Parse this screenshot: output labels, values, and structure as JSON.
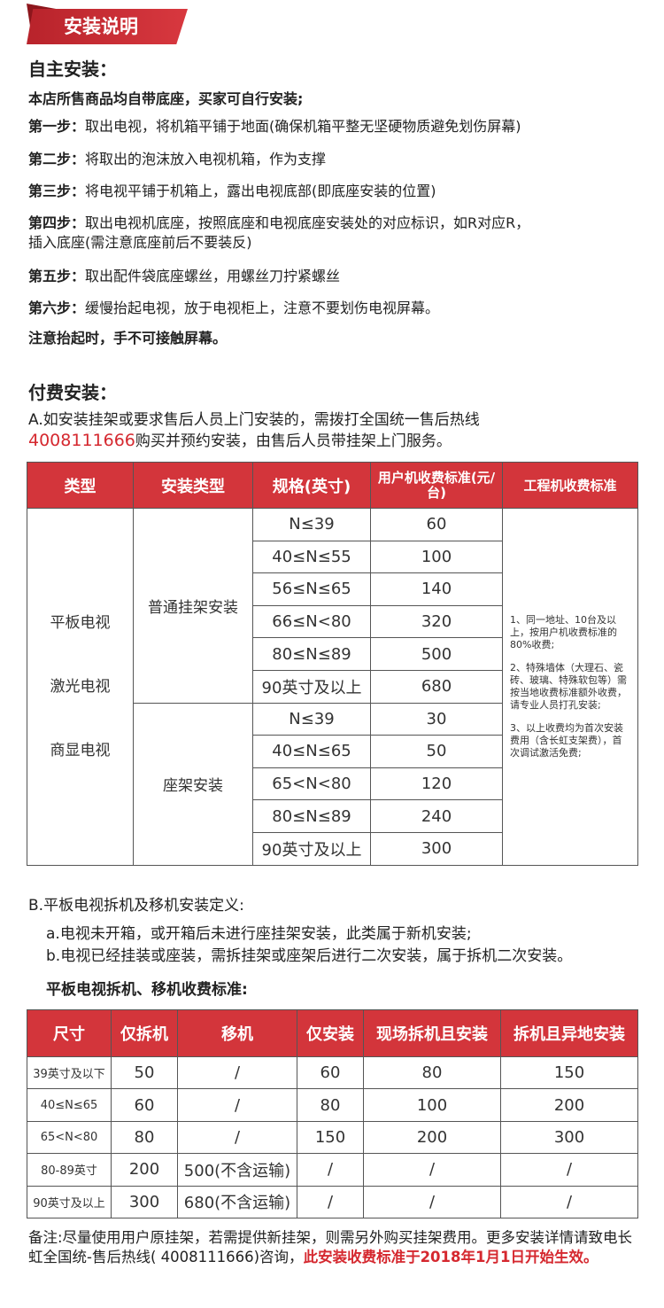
{
  "banner": {
    "title": "安装说明"
  },
  "self": {
    "heading": "自主安装：",
    "intro": "本店所售商品均自带底座，买家可自行安装;",
    "steps": [
      {
        "label": "第一步：",
        "text": "取出电视，将机箱平铺于地面(确保机箱平整无坚硬物质避免划伤屏幕)"
      },
      {
        "label": "第二步：",
        "text": "将取出的泡沫放入电视机箱，作为支撑"
      },
      {
        "label": "第三步：",
        "text": "将电视平铺于机箱上，露出电视底部(即底座安装的位置)"
      },
      {
        "label": "第四步：",
        "text": "取出电视机底座，按照底座和电视底座安装处的对应标识，如R对应R，",
        "text2": "插入底座(需注意底座前后不要装反)"
      },
      {
        "label": "第五步：",
        "text": "取出配件袋底座螺丝，用螺丝刀拧紧螺丝"
      },
      {
        "label": "第六步：",
        "text": "缓慢抬起电视，放于电视柜上，注意不要划伤电视屏幕。"
      }
    ],
    "caution": "注意抬起时，手不可接触屏幕。"
  },
  "paid": {
    "heading": "付费安装：",
    "line1": "A.如安装挂架或要求售后人员上门安装的，需拨打全国统一售后热线",
    "hotline": "4008111666",
    "line2": "购买并预约安装，由售后人员带挂架上门服务。"
  },
  "table1": {
    "headers": [
      "类型",
      "安装类型",
      "规格(英寸)",
      "用户机收费标准(元/台)",
      "工程机收费标准"
    ],
    "types": [
      "平板电视",
      "激光电视",
      "商显电视"
    ],
    "groups": [
      {
        "name": "普通挂架安装",
        "rows": [
          [
            "N≤39",
            "60"
          ],
          [
            "40≤N≤55",
            "100"
          ],
          [
            "56≤N≤65",
            "140"
          ],
          [
            "66≤N<80",
            "320"
          ],
          [
            "80≤N≤89",
            "500"
          ],
          [
            "90英寸及以上",
            "680"
          ]
        ]
      },
      {
        "name": "座架安装",
        "rows": [
          [
            "N≤39",
            "30"
          ],
          [
            "40≤N≤65",
            "50"
          ],
          [
            "65<N<80",
            "120"
          ],
          [
            "80≤N≤89",
            "240"
          ],
          [
            "90英寸及以上",
            "300"
          ]
        ]
      }
    ],
    "notes": [
      "1、同一地址、10台及以上，按用户机收费标准的80%收费;",
      "2、特殊墙体（大理石、瓷砖、玻璃、特殊软包等）需按当地收费标准额外收费，请专业人员打孔安装;",
      "3、以上收费均为首次安装费用（含长虹支架费），首次调试激活免费;"
    ]
  },
  "sectionB": {
    "heading": "B.平板电视拆机及移机安装定义:",
    "a": "a.电视未开箱，或开箱后未进行座挂架安装，此类属于新机安装;",
    "b": "b.电视已经挂装或座装，需拆挂架或座架后进行二次安装，属于拆机二次安装。",
    "subheading": "平板电视拆机、移机收费标准:"
  },
  "table2": {
    "headers": [
      "尺寸",
      "仅拆机",
      "移机",
      "仅安装",
      "现场拆机且安装",
      "拆机且异地安装"
    ],
    "rows": [
      [
        "39英寸及以下",
        "50",
        "/",
        "60",
        "80",
        "150"
      ],
      [
        "40≤N≤65",
        "60",
        "/",
        "80",
        "100",
        "200"
      ],
      [
        "65<N<80",
        "80",
        "/",
        "150",
        "200",
        "300"
      ],
      [
        "80-89英寸",
        "200",
        "500(不含运输)",
        "/",
        "/",
        "/"
      ],
      [
        "90英寸及以上",
        "300",
        "680(不含运输)",
        "/",
        "/",
        "/"
      ]
    ]
  },
  "footer": {
    "note": "备注:尽量使用用户原挂架，若需提供新挂架，则需另外购买挂架费用。更多安装详情请致电长虹全国统-售后热线( 4008111666)咨询，",
    "highlight": "此安装收费标准于2018年1月1日开始生效。"
  },
  "colors": {
    "accent": "#d3353b",
    "highlight": "#d5282f"
  }
}
